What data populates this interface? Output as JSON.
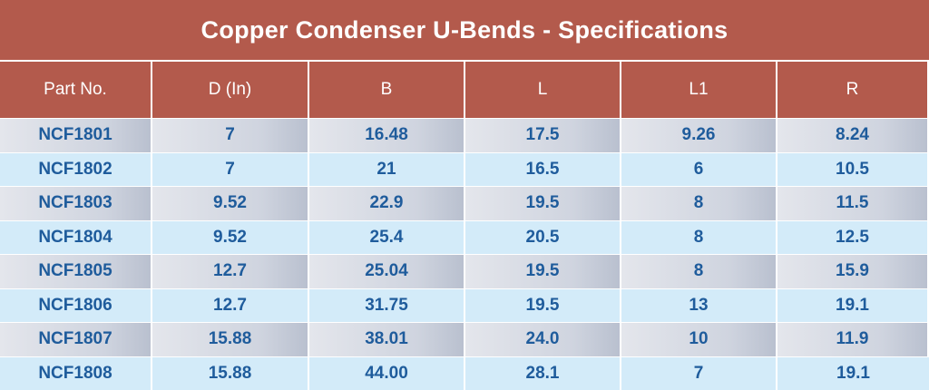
{
  "header": {
    "title": "Copper Condenser U-Bends - Specifications"
  },
  "table": {
    "columns": [
      "Part No.",
      "D (In)",
      "B",
      "L",
      "L1",
      "R"
    ],
    "rows": [
      [
        "NCF1801",
        "7",
        "16.48",
        "17.5",
        "9.26",
        "8.24"
      ],
      [
        "NCF1802",
        "7",
        "21",
        "16.5",
        "6",
        "10.5"
      ],
      [
        "NCF1803",
        "9.52",
        "22.9",
        "19.5",
        "8",
        "11.5"
      ],
      [
        "NCF1804",
        "9.52",
        "25.4",
        "20.5",
        "8",
        "12.5"
      ],
      [
        "NCF1805",
        "12.7",
        "25.04",
        "19.5",
        "8",
        "15.9"
      ],
      [
        "NCF1806",
        "12.7",
        "31.75",
        "19.5",
        "13",
        "19.1"
      ],
      [
        "NCF1807",
        "15.88",
        "38.01",
        "24.0",
        "10",
        "11.9"
      ],
      [
        "NCF1808",
        "15.88",
        "44.00",
        "28.1",
        "7",
        "19.1"
      ]
    ]
  }
}
